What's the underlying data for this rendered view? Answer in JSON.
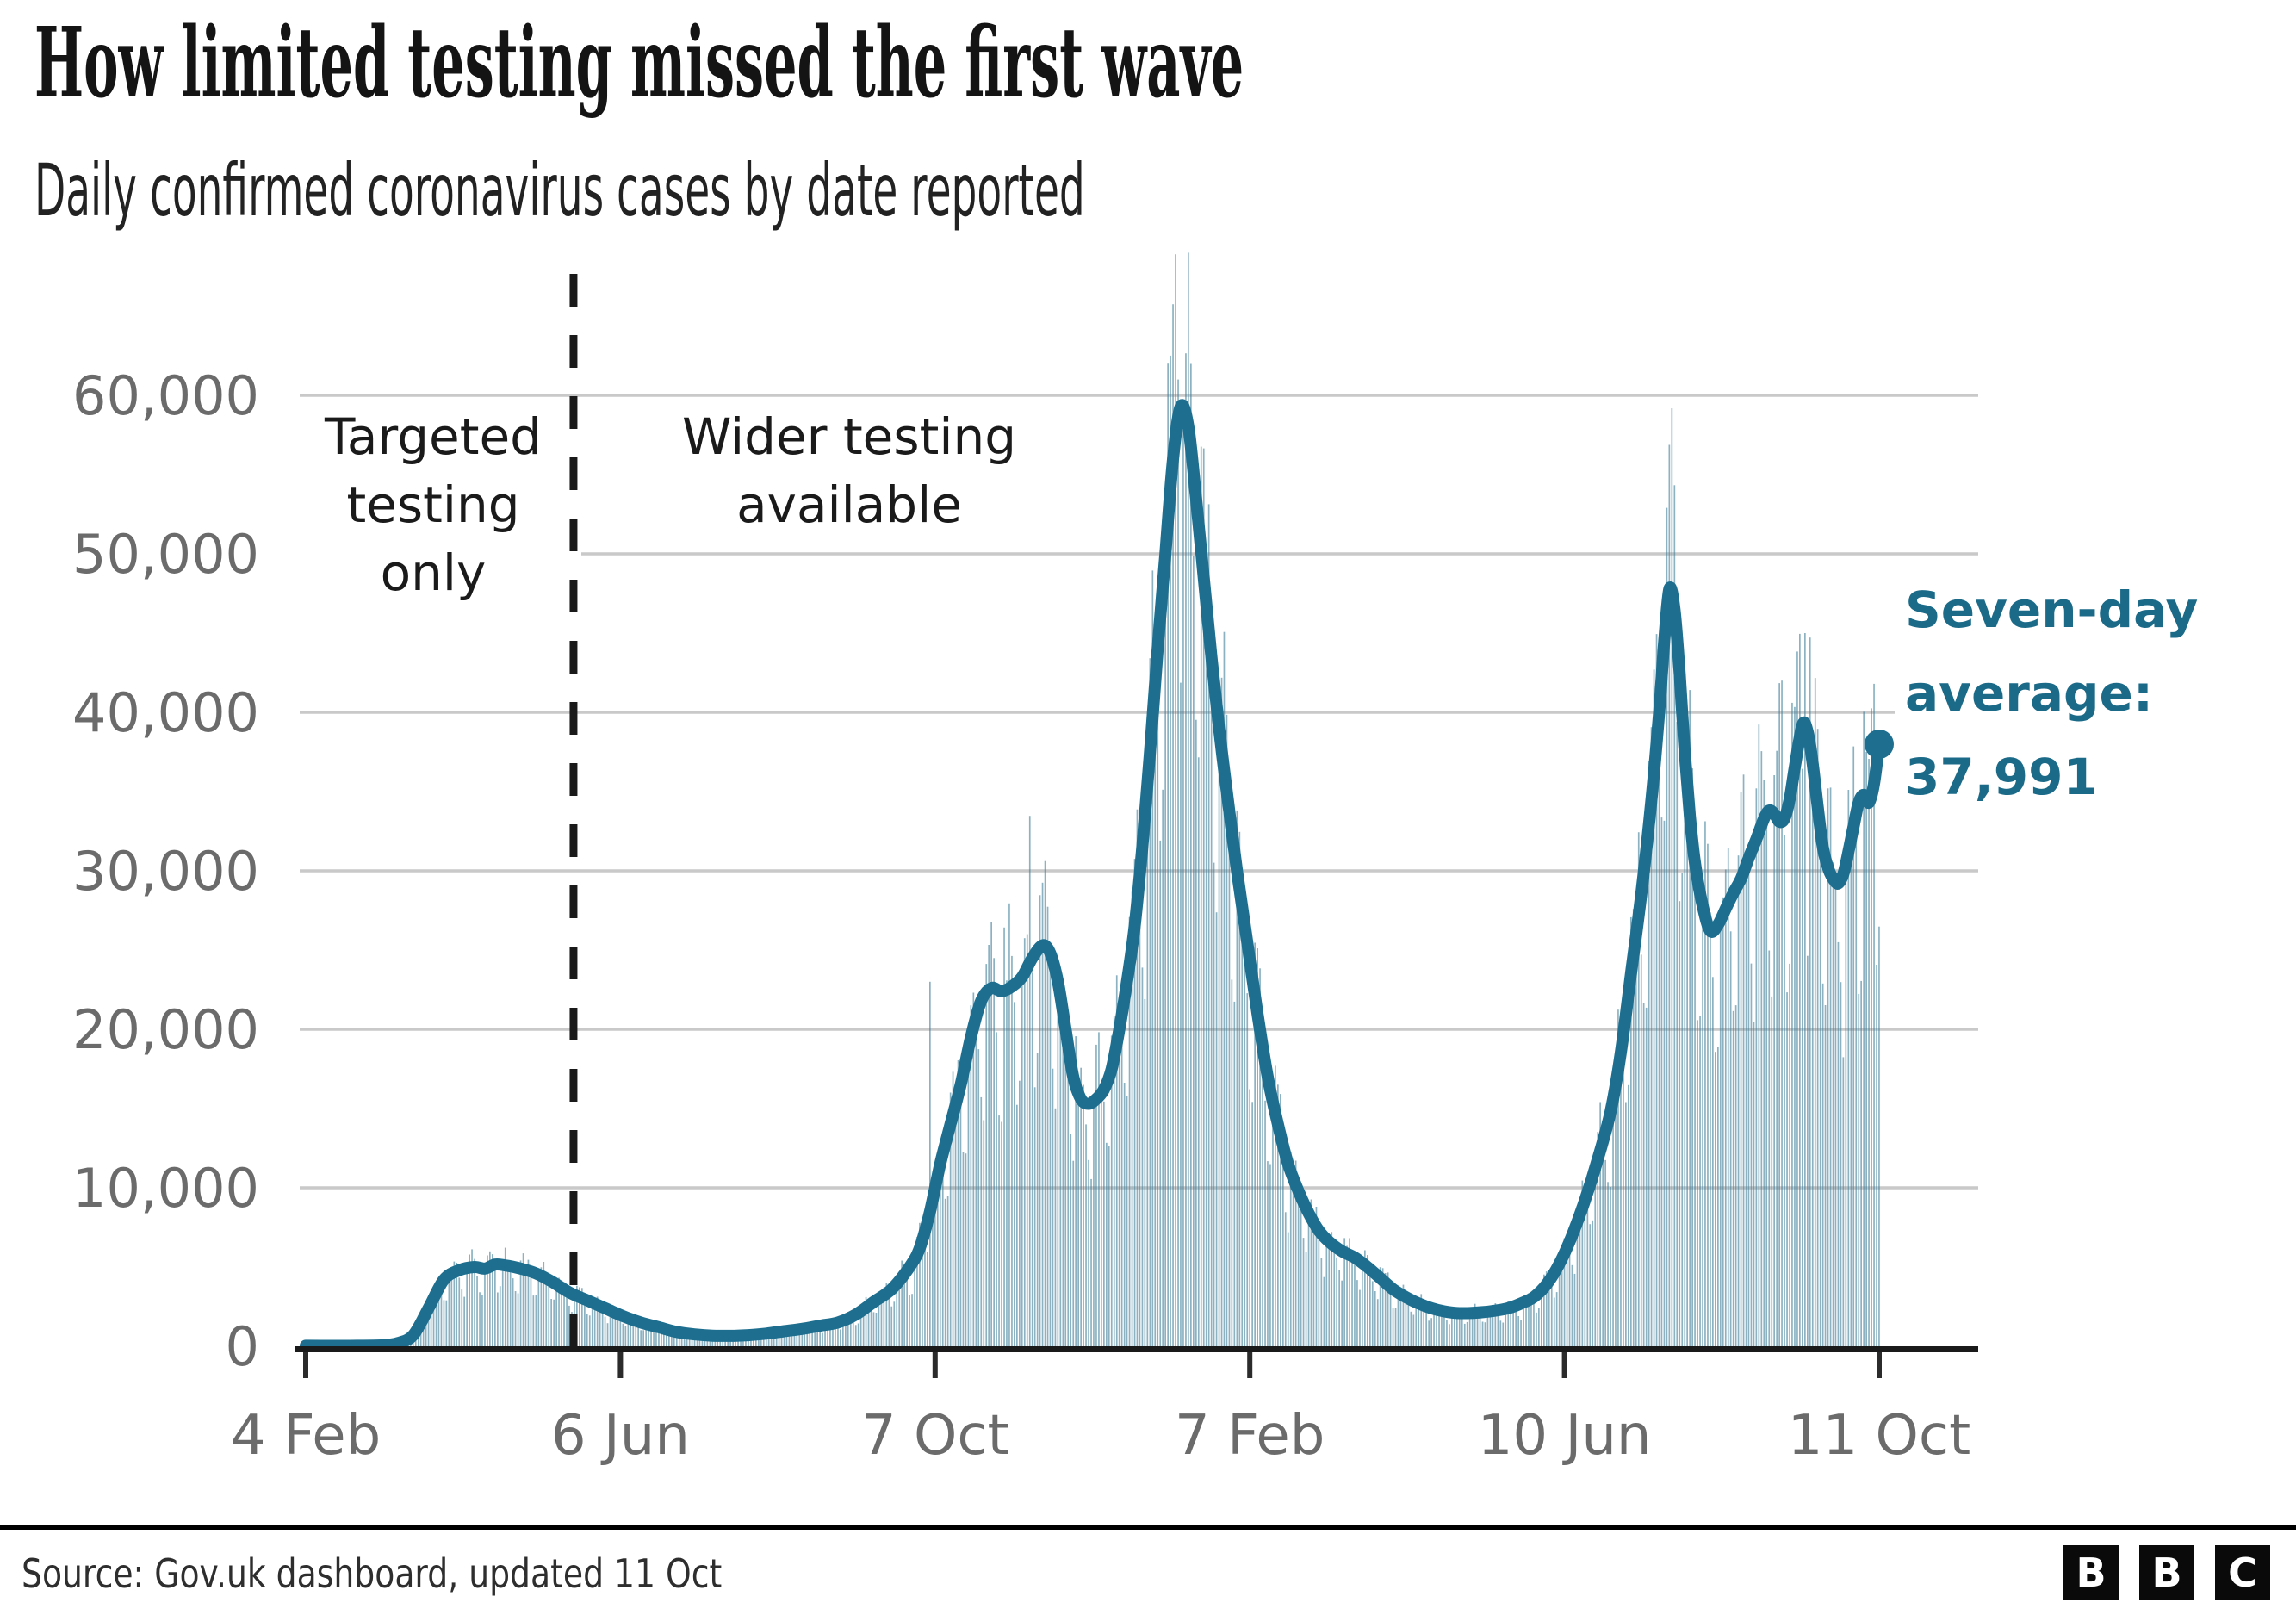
{
  "chart_data": {
    "type": "bar+line",
    "title": "How limited testing missed the first wave",
    "subtitle": "Daily confirmed coronavirus cases by date reported",
    "x_axis": {
      "day0_date": "4 Feb 2020",
      "ticks": [
        {
          "label": "4 Feb",
          "day": 0
        },
        {
          "label": "6 Jun",
          "day": 123
        },
        {
          "label": "7 Oct",
          "day": 246
        },
        {
          "label": "7 Feb",
          "day": 369
        },
        {
          "label": "10 Jun",
          "day": 492
        },
        {
          "label": "11 Oct",
          "day": 615
        }
      ]
    },
    "y_axis": {
      "ylim": [
        0,
        69500
      ],
      "ticks": [
        {
          "label": "0",
          "value": 0
        },
        {
          "label": "10,000",
          "value": 10000
        },
        {
          "label": "20,000",
          "value": 20000
        },
        {
          "label": "30,000",
          "value": 30000
        },
        {
          "label": "40,000",
          "value": 40000
        },
        {
          "label": "50,000",
          "value": 50000
        },
        {
          "label": "60,000",
          "value": 60000
        }
      ]
    },
    "annotations": {
      "divider_day": 104,
      "targeted": {
        "lines": [
          "Targeted",
          "testing",
          "only"
        ]
      },
      "wider": {
        "lines": [
          "Wider testing",
          "available"
        ]
      }
    },
    "end_label": {
      "lines": [
        "Seven-day",
        "average:",
        "37,991"
      ],
      "value": 37991
    },
    "series": [
      {
        "name": "Daily confirmed cases",
        "type": "bar",
        "note": "thin daily bars; values approximated from seven-day average with weekly reporting pattern",
        "weekday_factors": [
          1.08,
          1.12,
          1.15,
          1.1,
          0.95,
          0.72,
          0.68
        ],
        "outliers": [
          [
            244,
            23000
          ],
          [
            283,
            33470
          ],
          [
            337,
            62000
          ],
          [
            340,
            68900
          ],
          [
            341,
            61000
          ],
          [
            532,
            52900
          ],
          [
            577,
            42000
          ],
          [
            586,
            45000
          ],
          [
            613,
            41800
          ]
        ]
      },
      {
        "name": "Seven-day average",
        "type": "line",
        "points": [
          [
            0,
            30
          ],
          [
            10,
            25
          ],
          [
            20,
            30
          ],
          [
            30,
            60
          ],
          [
            36,
            200
          ],
          [
            42,
            700
          ],
          [
            48,
            2400
          ],
          [
            54,
            4200
          ],
          [
            60,
            4800
          ],
          [
            66,
            5000
          ],
          [
            70,
            4900
          ],
          [
            74,
            5150
          ],
          [
            78,
            5100
          ],
          [
            84,
            4900
          ],
          [
            90,
            4600
          ],
          [
            96,
            4100
          ],
          [
            103,
            3400
          ],
          [
            110,
            2900
          ],
          [
            117,
            2400
          ],
          [
            124,
            1900
          ],
          [
            131,
            1500
          ],
          [
            138,
            1200
          ],
          [
            145,
            900
          ],
          [
            152,
            750
          ],
          [
            159,
            670
          ],
          [
            166,
            660
          ],
          [
            173,
            700
          ],
          [
            180,
            800
          ],
          [
            187,
            950
          ],
          [
            194,
            1100
          ],
          [
            201,
            1300
          ],
          [
            208,
            1500
          ],
          [
            215,
            2000
          ],
          [
            222,
            2800
          ],
          [
            229,
            3600
          ],
          [
            236,
            5000
          ],
          [
            240,
            6200
          ],
          [
            244,
            8500
          ],
          [
            248,
            11500
          ],
          [
            252,
            14000
          ],
          [
            256,
            16500
          ],
          [
            260,
            19500
          ],
          [
            264,
            21800
          ],
          [
            268,
            22600
          ],
          [
            272,
            22400
          ],
          [
            276,
            22700
          ],
          [
            280,
            23300
          ],
          [
            284,
            24500
          ],
          [
            288,
            25300
          ],
          [
            291,
            24800
          ],
          [
            294,
            23000
          ],
          [
            297,
            20000
          ],
          [
            300,
            17000
          ],
          [
            303,
            15600
          ],
          [
            306,
            15300
          ],
          [
            309,
            15600
          ],
          [
            312,
            16200
          ],
          [
            315,
            17500
          ],
          [
            318,
            20000
          ],
          [
            321,
            23000
          ],
          [
            324,
            26500
          ],
          [
            327,
            31500
          ],
          [
            330,
            37500
          ],
          [
            333,
            44000
          ],
          [
            336,
            50000
          ],
          [
            339,
            56000
          ],
          [
            342,
            59300
          ],
          [
            345,
            58000
          ],
          [
            348,
            53500
          ],
          [
            351,
            48500
          ],
          [
            354,
            43500
          ],
          [
            357,
            39000
          ],
          [
            360,
            35000
          ],
          [
            364,
            30000
          ],
          [
            368,
            25500
          ],
          [
            372,
            21000
          ],
          [
            376,
            17000
          ],
          [
            380,
            14000
          ],
          [
            384,
            11500
          ],
          [
            388,
            9800
          ],
          [
            392,
            8400
          ],
          [
            396,
            7300
          ],
          [
            400,
            6600
          ],
          [
            405,
            6000
          ],
          [
            410,
            5600
          ],
          [
            415,
            5000
          ],
          [
            420,
            4300
          ],
          [
            425,
            3600
          ],
          [
            430,
            3100
          ],
          [
            435,
            2700
          ],
          [
            440,
            2400
          ],
          [
            445,
            2200
          ],
          [
            450,
            2100
          ],
          [
            455,
            2100
          ],
          [
            460,
            2150
          ],
          [
            465,
            2250
          ],
          [
            470,
            2400
          ],
          [
            475,
            2700
          ],
          [
            480,
            3100
          ],
          [
            485,
            3900
          ],
          [
            490,
            5200
          ],
          [
            495,
            7000
          ],
          [
            500,
            9200
          ],
          [
            505,
            11800
          ],
          [
            510,
            14800
          ],
          [
            514,
            18500
          ],
          [
            518,
            23500
          ],
          [
            522,
            28500
          ],
          [
            526,
            34500
          ],
          [
            529,
            40000
          ],
          [
            531,
            44500
          ],
          [
            533,
            47800
          ],
          [
            535,
            46500
          ],
          [
            537,
            42500
          ],
          [
            539,
            37500
          ],
          [
            541,
            33500
          ],
          [
            543,
            30500
          ],
          [
            546,
            27800
          ],
          [
            549,
            26200
          ],
          [
            552,
            26600
          ],
          [
            555,
            27600
          ],
          [
            558,
            28600
          ],
          [
            561,
            29500
          ],
          [
            564,
            30800
          ],
          [
            567,
            32000
          ],
          [
            570,
            33300
          ],
          [
            572,
            33800
          ],
          [
            574,
            33600
          ],
          [
            576,
            33100
          ],
          [
            578,
            33300
          ],
          [
            580,
            34500
          ],
          [
            582,
            36500
          ],
          [
            585,
            39200
          ],
          [
            587,
            38800
          ],
          [
            589,
            36800
          ],
          [
            591,
            34000
          ],
          [
            593,
            31500
          ],
          [
            595,
            30200
          ],
          [
            597,
            29500
          ],
          [
            599,
            29200
          ],
          [
            601,
            29800
          ],
          [
            603,
            31200
          ],
          [
            605,
            32800
          ],
          [
            607,
            34300
          ],
          [
            609,
            34800
          ],
          [
            611,
            34300
          ],
          [
            613,
            35500
          ],
          [
            615,
            37991
          ]
        ]
      }
    ]
  },
  "colors": {
    "accent_line": "#1e6f8f",
    "accent_text": "#1b6a88",
    "bar": "#3f7f99",
    "grid": "#c9c9c9",
    "axis": "#1a1a1a",
    "tick": "#2b2b2b",
    "label_gray": "#6b6b6b"
  },
  "footer": {
    "source": "Source: Gov.uk dashboard, updated 11 Oct",
    "logo_letters": [
      "B",
      "B",
      "C"
    ]
  }
}
